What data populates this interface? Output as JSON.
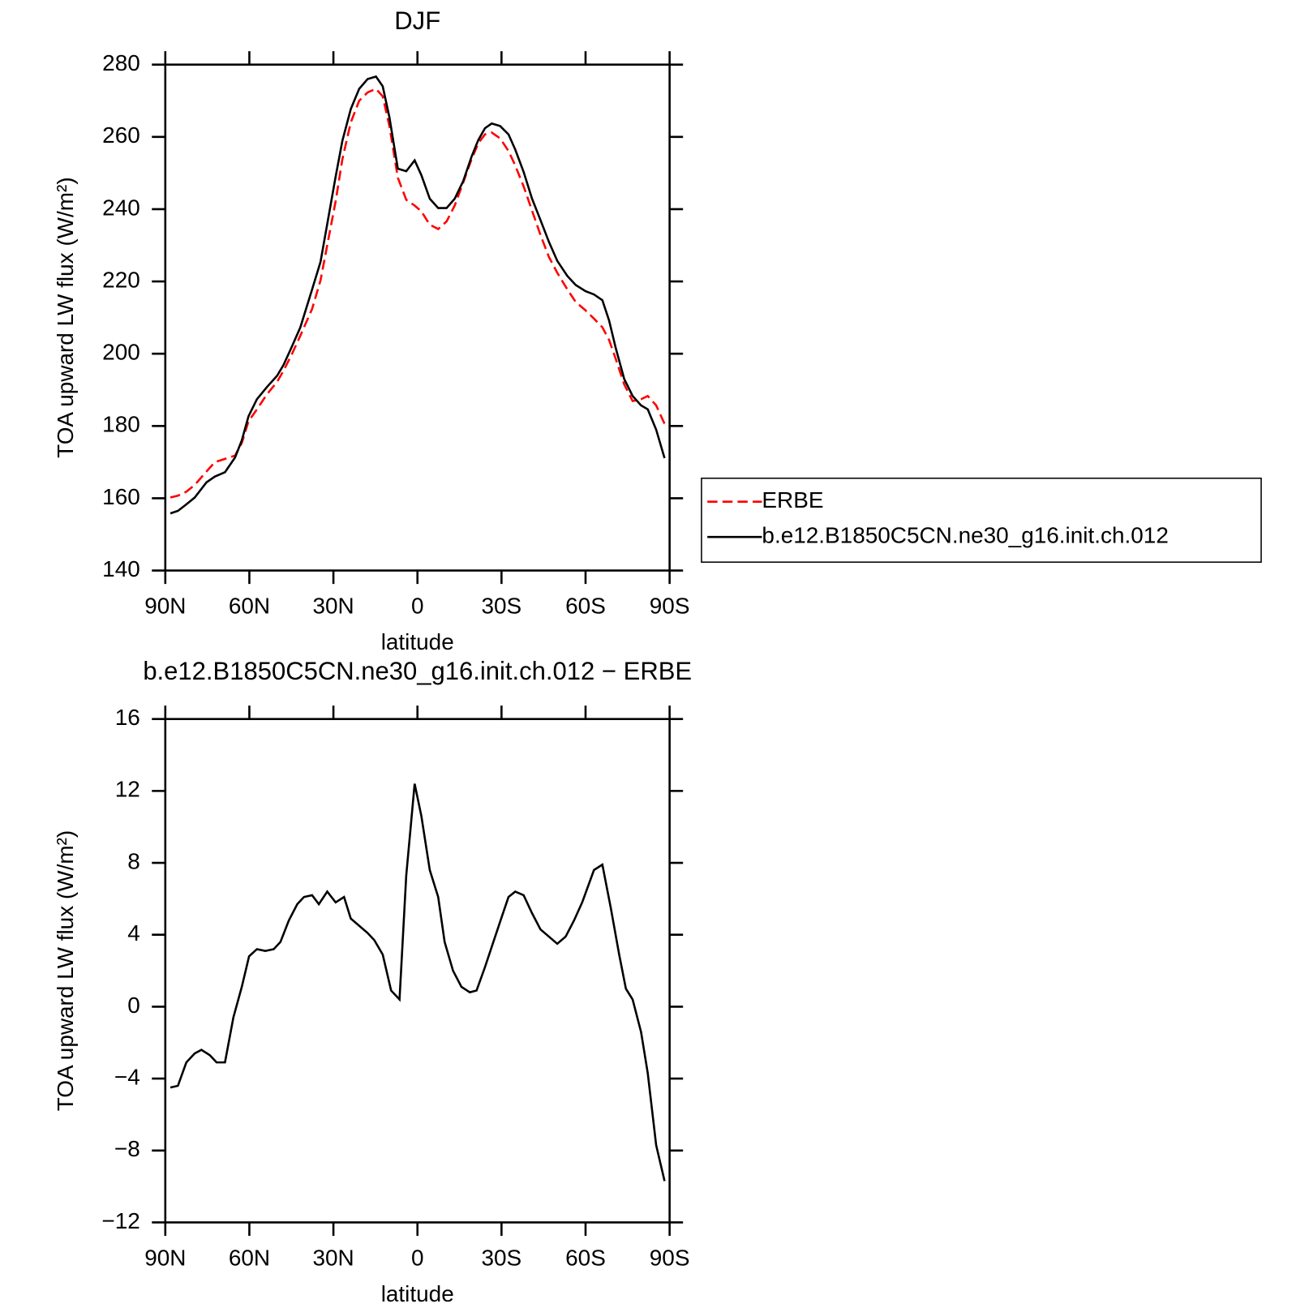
{
  "chart_data": [
    {
      "type": "line",
      "title": "DJF",
      "xlabel": "latitude",
      "ylabel": "TOA upward LW flux (W/m²)",
      "x": [
        88.2,
        85.5,
        82.5,
        79.5,
        75.3,
        72.3,
        68.7,
        65.1,
        62.7,
        60.3,
        57.3,
        53.7,
        50.1,
        47.8,
        44.8,
        41.8,
        37.6,
        34.6,
        29.2,
        26.8,
        23.8,
        20.8,
        17.8,
        14.8,
        12.4,
        10.0,
        7.0,
        4.0,
        1.0,
        -1.4,
        -4.4,
        -7.4,
        -10.4,
        -13.3,
        -16.3,
        -19.3,
        -21.7,
        -24.1,
        -26.5,
        -29.5,
        -32.5,
        -34.9,
        -37.9,
        -40.9,
        -43.9,
        -46.9,
        -49.9,
        -53.5,
        -56.5,
        -60.0,
        -63.0,
        -66.0,
        -68.4,
        -70.8,
        -73.8,
        -76.8,
        -79.8,
        -82.2,
        -85.2,
        -88.2
      ],
      "series": [
        {
          "name": "ERBE",
          "color": "#ff0000",
          "line_style": "dashed",
          "values": [
            160.2,
            160.7,
            161.8,
            163.7,
            167.4,
            170.0,
            170.9,
            171.8,
            175.3,
            181.3,
            184.6,
            188.8,
            192.2,
            195.3,
            199.9,
            205.0,
            212.4,
            220.3,
            242.2,
            253.8,
            264.0,
            270.0,
            272.3,
            273.3,
            271.2,
            263.0,
            248.7,
            242.6,
            241.0,
            239.4,
            235.7,
            234.5,
            236.6,
            241.0,
            247.3,
            253.8,
            258.2,
            260.7,
            261.2,
            259.6,
            256.1,
            252.1,
            246.3,
            239.6,
            232.9,
            226.8,
            222.4,
            217.8,
            214.3,
            212.0,
            209.7,
            207.3,
            203.8,
            198.5,
            191.5,
            186.9,
            187.4,
            188.3,
            185.7,
            180.6
          ]
        },
        {
          "name": "b.e12.B1850C5CN.ne30_g16.init.ch.012",
          "color": "#000000",
          "line_style": "solid",
          "values": [
            155.8,
            156.5,
            158.3,
            160.2,
            164.4,
            166.0,
            167.2,
            171.3,
            176.0,
            182.7,
            187.4,
            190.8,
            193.9,
            196.9,
            202.0,
            207.3,
            217.8,
            225.4,
            249.0,
            258.9,
            267.7,
            273.3,
            276.0,
            276.7,
            274.0,
            265.4,
            251.2,
            250.5,
            253.5,
            249.4,
            242.9,
            240.3,
            240.3,
            242.9,
            247.7,
            254.5,
            259.1,
            262.4,
            263.7,
            263.0,
            260.7,
            256.5,
            250.3,
            242.9,
            237.0,
            231.0,
            225.7,
            221.5,
            219.0,
            217.3,
            216.4,
            214.8,
            209.2,
            201.5,
            193.0,
            188.3,
            185.7,
            184.6,
            179.0,
            171.1
          ]
        }
      ],
      "xlim": [
        90,
        -90
      ],
      "xticks": [
        {
          "value": 90,
          "label": "90N"
        },
        {
          "value": 60,
          "label": "60N"
        },
        {
          "value": 30,
          "label": "30N"
        },
        0,
        {
          "value": -30,
          "label": "30S"
        },
        {
          "value": -60,
          "label": "60S"
        },
        {
          "value": -90,
          "label": "90S"
        }
      ],
      "ylim": [
        140,
        280
      ],
      "yticks": [
        140,
        160,
        180,
        200,
        220,
        240,
        260,
        280
      ],
      "legend": "outside-right"
    },
    {
      "type": "line",
      "title": "b.e12.B1850C5CN.ne30_g16.init.ch.012 − ERBE",
      "xlabel": "latitude",
      "ylabel": "TOA upward LW flux (W/m²)",
      "x": [
        88.2,
        85.5,
        82.5,
        79.5,
        77.1,
        74.1,
        71.7,
        68.7,
        65.7,
        62.7,
        60.1,
        57.3,
        54.3,
        51.3,
        48.9,
        45.9,
        42.9,
        40.5,
        37.6,
        35.2,
        32.2,
        29.2,
        26.2,
        23.8,
        20.8,
        17.8,
        15.4,
        12.4,
        9.4,
        6.4,
        4.0,
        1.0,
        -1.4,
        -4.4,
        -7.4,
        -9.7,
        -12.7,
        -15.7,
        -18.7,
        -21.1,
        -24.1,
        -27.1,
        -30.1,
        -32.5,
        -34.9,
        -37.9,
        -40.9,
        -43.9,
        -46.9,
        -49.9,
        -52.9,
        -55.9,
        -58.8,
        -63.0,
        -66.0,
        -69.0,
        -72.0,
        -74.4,
        -76.8,
        -79.8,
        -82.2,
        -85.2,
        -88.2
      ],
      "series": [
        {
          "color": "#000000",
          "line_style": "solid",
          "values": [
            -4.5,
            -4.4,
            -3.1,
            -2.6,
            -2.4,
            -2.7,
            -3.1,
            -3.1,
            -0.6,
            1.1,
            2.8,
            3.2,
            3.1,
            3.2,
            3.6,
            4.8,
            5.7,
            6.1,
            6.2,
            5.7,
            6.4,
            5.8,
            6.1,
            4.9,
            4.5,
            4.1,
            3.7,
            2.9,
            0.9,
            0.4,
            7.3,
            12.4,
            10.6,
            7.6,
            6.1,
            3.6,
            2.0,
            1.1,
            0.8,
            0.9,
            2.2,
            3.6,
            5.0,
            6.1,
            6.4,
            6.2,
            5.2,
            4.3,
            3.9,
            3.5,
            3.9,
            4.8,
            5.8,
            7.6,
            7.9,
            5.5,
            2.9,
            1.0,
            0.4,
            -1.4,
            -3.7,
            -7.7,
            -9.7
          ]
        }
      ],
      "xlim": [
        90,
        -90
      ],
      "xticks": [
        {
          "value": 90,
          "label": "90N"
        },
        {
          "value": 60,
          "label": "60N"
        },
        {
          "value": 30,
          "label": "30N"
        },
        0,
        {
          "value": -30,
          "label": "30S"
        },
        {
          "value": -60,
          "label": "60S"
        },
        {
          "value": -90,
          "label": "90S"
        }
      ],
      "ylim": [
        -12,
        16
      ],
      "yticks": [
        {
          "value": -12,
          "label": "−12"
        },
        {
          "value": -8,
          "label": "−8"
        },
        {
          "value": -4,
          "label": "−4"
        },
        0,
        4,
        8,
        12,
        16
      ]
    }
  ]
}
